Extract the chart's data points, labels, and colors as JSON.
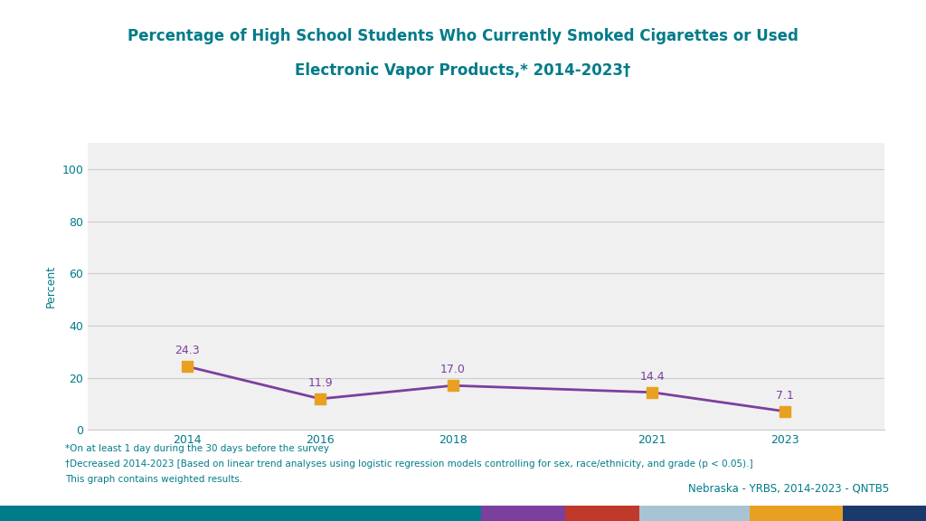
{
  "title_line1": "Percentage of High School Students Who Currently Smoked Cigarettes or Used",
  "title_line2": "Electronic Vapor Products,* 2014-2023†",
  "years": [
    2014,
    2016,
    2018,
    2021,
    2023
  ],
  "values": [
    24.3,
    11.9,
    17.0,
    14.4,
    7.1
  ],
  "line_color": "#7B3F9E",
  "marker_color": "#E8A020",
  "marker_style": "s",
  "ylabel": "Percent",
  "ylim": [
    0,
    110
  ],
  "yticks": [
    0,
    20,
    40,
    60,
    80,
    100
  ],
  "title_color": "#007B8A",
  "ylabel_color": "#007B8A",
  "xtick_color": "#007B8A",
  "ytick_color": "#007B8A",
  "bg_color": "#FFFFFF",
  "plot_bg_color": "#F0F0F0",
  "footnote1": "*On at least 1 day during the 30 days before the survey",
  "footnote2": "†Decreased 2014-2023 [Based on linear trend analyses using logistic regression models controlling for sex, race/ethnicity, and grade (p < 0.05).]",
  "footnote3": "This graph contains weighted results.",
  "bottom_label": "Nebraska - YRBS, 2014-2023 - QNTB5",
  "bottom_label_color": "#007B8A",
  "bar_colors": [
    "#007B8A",
    "#7B3F9E",
    "#C0392B",
    "#A8C4D4",
    "#E8A020",
    "#1A3A6B"
  ],
  "bar_widths": [
    0.52,
    0.09,
    0.08,
    0.12,
    0.1,
    0.09
  ],
  "grid_color": "#CCCCCC",
  "annotation_color": "#7B3F9E"
}
